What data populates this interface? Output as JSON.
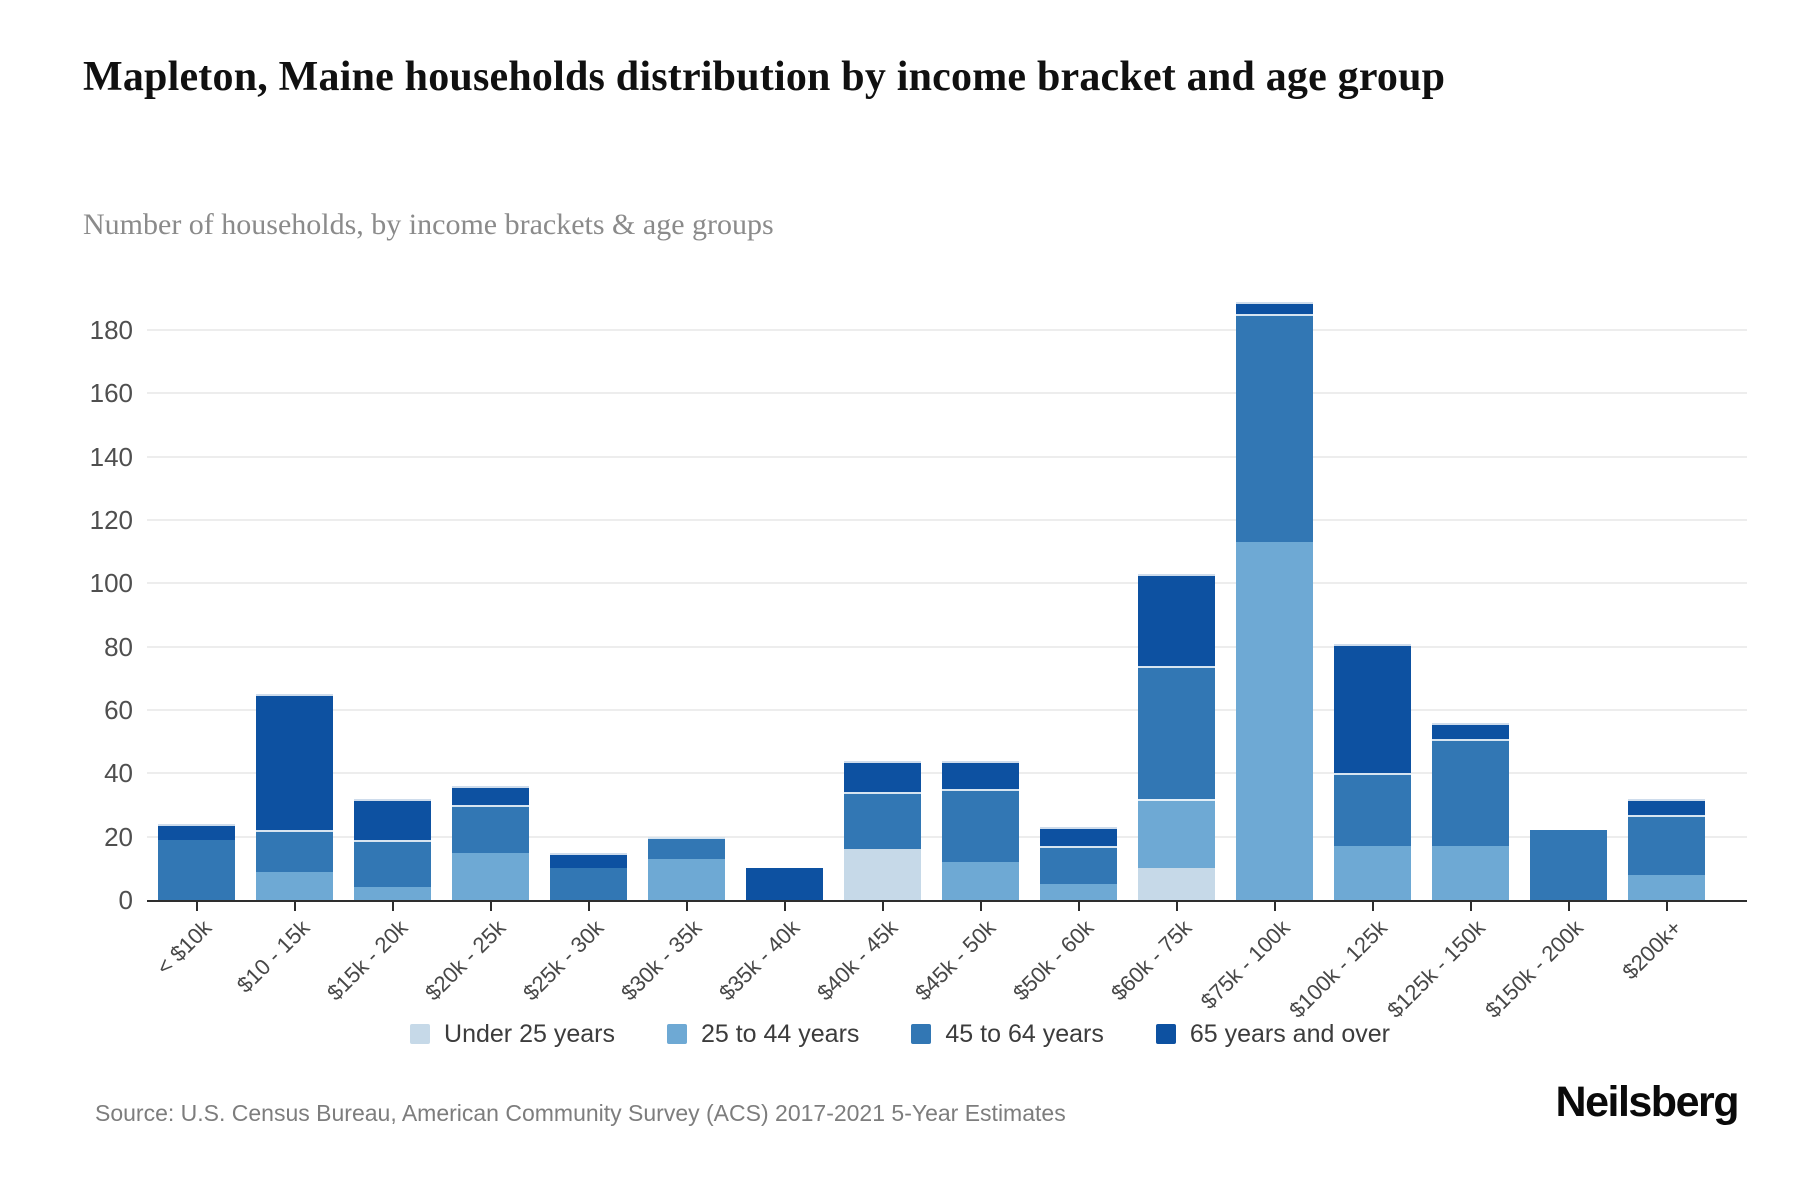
{
  "header": {
    "title": "Mapleton, Maine households distribution by income bracket and age group",
    "subtitle": "Number of households, by income brackets & age groups"
  },
  "footer": {
    "source": "Source: U.S. Census Bureau, American Community Survey (ACS) 2017-2021 5-Year Estimates",
    "brand": "Neilsberg"
  },
  "colors": {
    "under25": "#c6d9e8",
    "age25to44": "#6ea9d4",
    "age45to64": "#3277b4",
    "age65plus": "#0d51a1",
    "axis": "#2e2e2e",
    "grid": "#ededed"
  },
  "chart_data": {
    "type": "bar",
    "stacked": true,
    "title": "Mapleton, Maine households distribution by income bracket and age group",
    "subtitle": "Number of households, by income brackets & age groups",
    "xlabel": "",
    "ylabel": "",
    "ylim": [
      0,
      190
    ],
    "yticks": [
      0,
      20,
      40,
      60,
      80,
      100,
      120,
      140,
      160,
      180
    ],
    "grid": true,
    "legend_position": "bottom",
    "categories": [
      "< $10k",
      "$10 - 15k",
      "$15k - 20k",
      "$20k - 25k",
      "$25k - 30k",
      "$30k - 35k",
      "$35k - 40k",
      "$40k - 45k",
      "$45k - 50k",
      "$50k - 60k",
      "$60k - 75k",
      "$75k - 100k",
      "$100k - 125k",
      "$125k - 150k",
      "$150k - 200k",
      "$200k+"
    ],
    "series": [
      {
        "name": "Under 25 years",
        "color": "#c6d9e8",
        "values": [
          0,
          0,
          0,
          0,
          0,
          0,
          0,
          16,
          0,
          0,
          10,
          0,
          0,
          0,
          0,
          0
        ]
      },
      {
        "name": "25 to 44 years",
        "color": "#6ea9d4",
        "values": [
          0,
          9,
          4,
          15,
          0,
          13,
          0,
          0,
          12,
          5,
          22,
          113,
          17,
          17,
          0,
          8
        ]
      },
      {
        "name": "45 to 64 years",
        "color": "#3277b4",
        "values": [
          19,
          13,
          15,
          15,
          10,
          7,
          0,
          18,
          23,
          12,
          42,
          72,
          23,
          34,
          22,
          19
        ]
      },
      {
        "name": "65 years and over",
        "color": "#0d51a1",
        "values": [
          5,
          43,
          13,
          6,
          5,
          0,
          10,
          10,
          9,
          6,
          29,
          4,
          41,
          5,
          0,
          5
        ]
      }
    ],
    "totals": [
      24,
      65,
      32,
      36,
      15,
      20,
      10,
      44,
      44,
      23,
      103,
      189,
      81,
      56,
      22,
      32
    ]
  }
}
